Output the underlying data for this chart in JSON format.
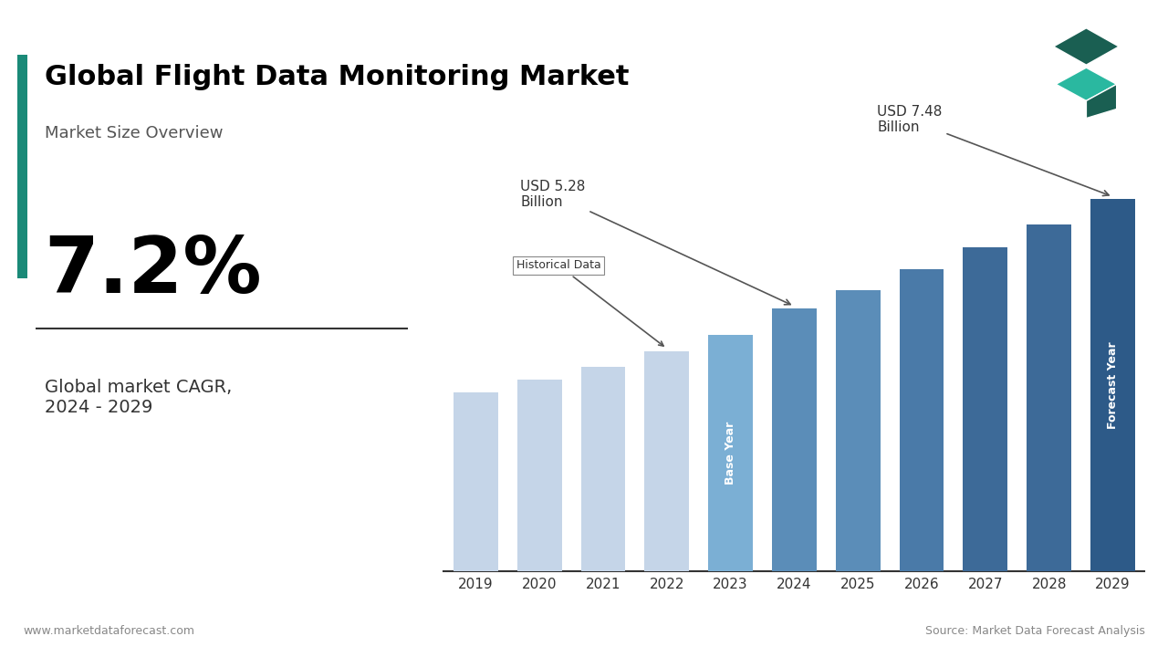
{
  "title": "Global Flight Data Monitoring Market",
  "subtitle": "Market Size Overview",
  "cagr": "7.2%",
  "cagr_label": "Global market CAGR,\n2024 - 2029",
  "years": [
    2019,
    2020,
    2021,
    2022,
    2023,
    2024,
    2025,
    2026,
    2027,
    2028,
    2029
  ],
  "values": [
    3.6,
    3.85,
    4.12,
    4.43,
    4.75,
    5.28,
    5.66,
    6.07,
    6.52,
    6.97,
    7.48
  ],
  "bar_colors": [
    "#c5d5e8",
    "#c5d5e8",
    "#c5d5e8",
    "#c5d5e8",
    "#7bafd4",
    "#5b8db8",
    "#5b8db8",
    "#4a7aa8",
    "#3d6a98",
    "#3d6a98",
    "#2d5a88"
  ],
  "annotation_5_28": "USD 5.28\nBillion",
  "annotation_7_48": "USD 7.48\nBillion",
  "annotation_historical": "Historical Data",
  "annotation_base_year": "Base Year",
  "annotation_forecast_year": "Forecast Year",
  "footer_left": "www.marketdataforecast.com",
  "footer_right": "Source: Market Data Forecast Analysis",
  "background_color": "#ffffff",
  "title_color": "#000000",
  "accent_color": "#1a8a78"
}
